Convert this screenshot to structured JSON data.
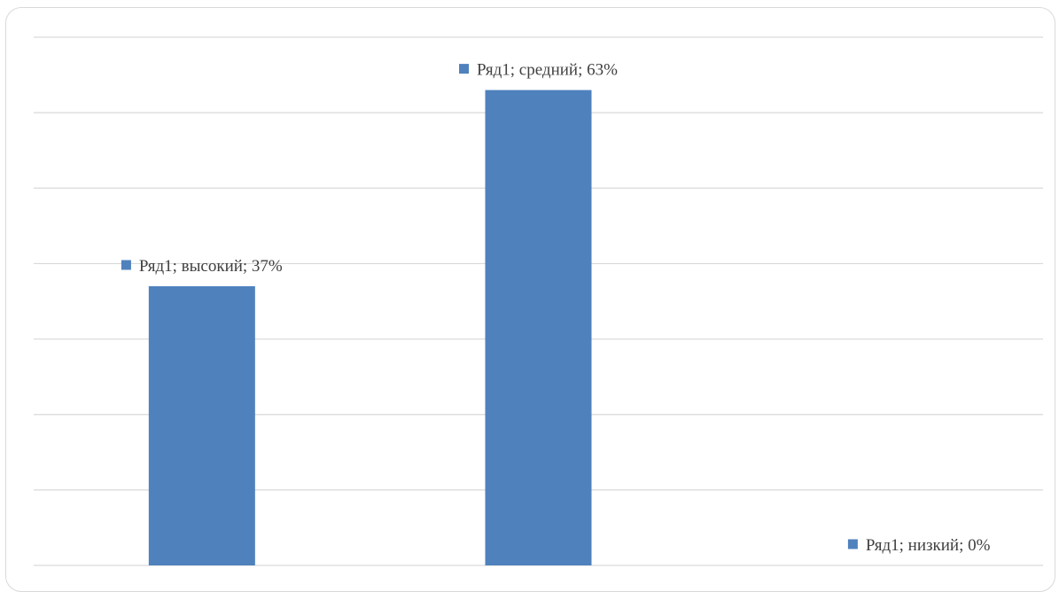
{
  "chart_data": {
    "type": "bar",
    "categories": [
      "высокий",
      "средний",
      "низкий"
    ],
    "series": [
      {
        "name": "Ряд1",
        "values": [
          37,
          63,
          0
        ]
      }
    ],
    "value_format": "percent",
    "data_labels": [
      "Ряд1; высокий; 37%",
      "Ряд1; средний; 63%",
      "Ряд1; низкий; 0%"
    ],
    "title": "",
    "xlabel": "",
    "ylabel": "",
    "ylim": [
      0,
      70
    ],
    "grid": true,
    "legend": "none",
    "colors": {
      "bar": "#4f81bd",
      "grid": "#d9d9d9",
      "label_text": "#404040"
    }
  }
}
